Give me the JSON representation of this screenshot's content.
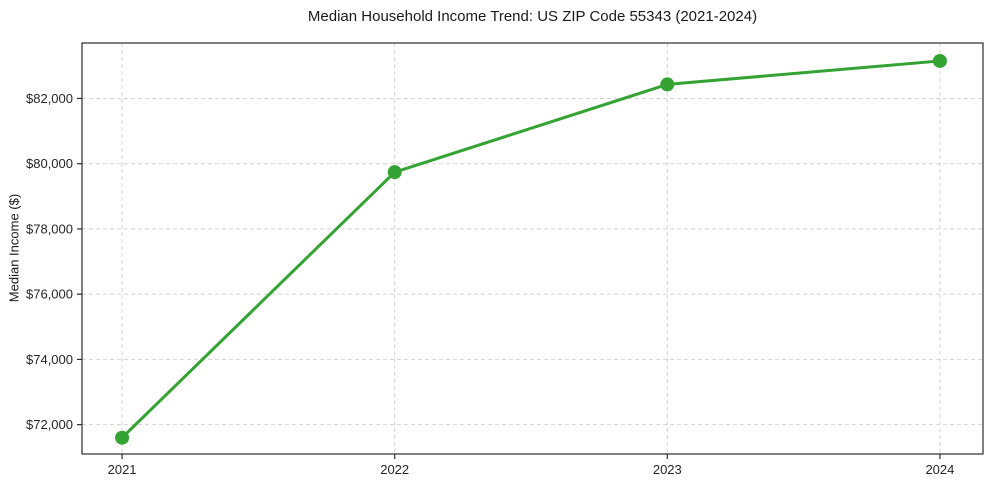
{
  "chart_data": {
    "type": "line",
    "title": "Median Household Income Trend: US ZIP Code 55343 (2021-2024)",
    "xlabel": "",
    "ylabel": "Median Income ($)",
    "x": [
      2021,
      2022,
      2023,
      2024
    ],
    "x_tick_labels": [
      "2021",
      "2022",
      "2023",
      "2024"
    ],
    "series": [
      {
        "name": "Median household income",
        "values": [
          71600,
          79740,
          82430,
          83150
        ]
      }
    ],
    "y_ticks": [
      72000,
      74000,
      76000,
      78000,
      80000,
      82000
    ],
    "y_tick_labels": [
      "$72,000",
      "$74,000",
      "$76,000",
      "$78,000",
      "$80,000",
      "$82,000"
    ],
    "xlim": [
      2020.853,
      2024.158
    ],
    "ylim": [
      71100,
      83700
    ],
    "grid": true,
    "grid_style": "dashed",
    "legend_position": "none",
    "colors": {
      "line": "#34a334",
      "marker": "#34a334",
      "grid": "#d4d4d4",
      "spine": "#2b2b2b",
      "tick": "#2b2b2b",
      "text": "#262626",
      "background": "#ffffff"
    },
    "line_width": 3,
    "marker_radius": 7
  }
}
